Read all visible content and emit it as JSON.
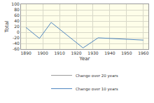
{
  "chart_data": {
    "type": "line",
    "x_label": "Year",
    "y_label": "Total",
    "x": [
      1890,
      1898,
      1905,
      1924,
      1933,
      1960
    ],
    "series": [
      {
        "name": "Change over 20 years",
        "color": "#9a9a9a",
        "values": [
          null,
          null,
          null,
          null,
          null,
          null
        ]
      },
      {
        "name": "Change over 10 years",
        "color": "#4f86c0",
        "values": [
          17,
          -22,
          35,
          -56,
          -20,
          -28
        ]
      }
    ],
    "xlim": [
      1887,
      1963
    ],
    "xticks": [
      1890,
      1900,
      1910,
      1920,
      1930,
      1940,
      1950,
      1960
    ],
    "ylim": [
      -60,
      100
    ],
    "yticks": [
      -60,
      -40,
      -20,
      0,
      20,
      40,
      60,
      80,
      100
    ],
    "grid": true,
    "legend": "bottom"
  }
}
